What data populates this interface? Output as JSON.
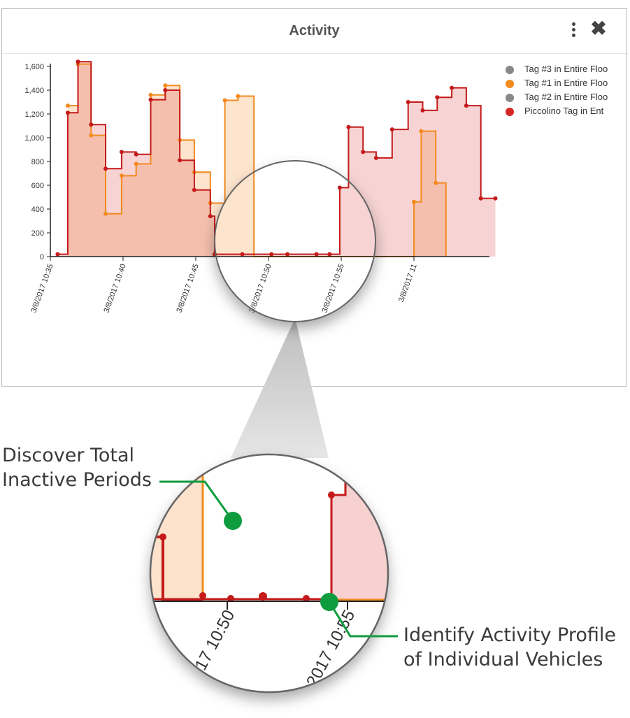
{
  "window": {
    "title": "Activity",
    "menu_icon": "kebab-menu-icon",
    "close_icon": "close-icon"
  },
  "legend": [
    {
      "label": "Tag #3 in Entire Floo",
      "color": "#888888"
    },
    {
      "label": "Tag #1 in Entire Floo",
      "color": "#f28a1e"
    },
    {
      "label": "Tag #2 in Entire Floo",
      "color": "#888888"
    },
    {
      "label": "Piccolino Tag in Ent",
      "color": "#d62728"
    }
  ],
  "chart_data": {
    "type": "area",
    "title": "Activity",
    "xlabel": "",
    "ylabel": "",
    "ylim": [
      0,
      1600
    ],
    "yticks": [
      0,
      200,
      400,
      600,
      800,
      1000,
      1200,
      1400,
      1600
    ],
    "ytick_labels": [
      "0",
      "200",
      "400",
      "600",
      "800",
      "1,000",
      "1,200",
      "1,400",
      "1,600"
    ],
    "xlim_minutes": [
      0,
      30
    ],
    "xticks_minutes": [
      0,
      5,
      10,
      15,
      20,
      25
    ],
    "xtick_labels": [
      "3/8/2017 10:35",
      "3/8/2017 10:40",
      "3/8/2017 10:45",
      "3/8/2017 10:50",
      "3/8/2017 10:55",
      "3/8/2017 11"
    ],
    "interpolation": "step-after",
    "grid": false,
    "legend_position": "top-right",
    "series": [
      {
        "name": "Tag #1 in Entire Floo",
        "color": "#f28a1e",
        "points": [
          [
            1.2,
            1270
          ],
          [
            1.9,
            1620
          ],
          [
            2.8,
            1020
          ],
          [
            3.8,
            360
          ],
          [
            4.9,
            680
          ],
          [
            5.9,
            780
          ],
          [
            6.9,
            1360
          ],
          [
            7.9,
            1440
          ],
          [
            8.9,
            980
          ],
          [
            9.9,
            710
          ],
          [
            11.0,
            450
          ],
          [
            12.0,
            1315
          ],
          [
            12.9,
            1350
          ],
          [
            14.0,
            0
          ],
          [
            20.0,
            0
          ],
          [
            25.0,
            460
          ],
          [
            25.5,
            1055
          ],
          [
            26.5,
            620
          ],
          [
            27.2,
            0
          ]
        ]
      },
      {
        "name": "Piccolino Tag in Ent",
        "color": "#d62728",
        "points": [
          [
            0.5,
            20
          ],
          [
            1.2,
            1210
          ],
          [
            1.9,
            1640
          ],
          [
            2.8,
            1110
          ],
          [
            3.8,
            740
          ],
          [
            4.9,
            880
          ],
          [
            5.9,
            860
          ],
          [
            6.9,
            1320
          ],
          [
            7.9,
            1400
          ],
          [
            8.9,
            810
          ],
          [
            9.9,
            560
          ],
          [
            11.0,
            340
          ],
          [
            11.3,
            20
          ],
          [
            13.2,
            20
          ],
          [
            15.2,
            20
          ],
          [
            16.3,
            20
          ],
          [
            18.3,
            20
          ],
          [
            19.2,
            20
          ],
          [
            19.9,
            580
          ],
          [
            20.5,
            1090
          ],
          [
            21.5,
            880
          ],
          [
            22.4,
            830
          ],
          [
            23.5,
            1070
          ],
          [
            24.6,
            1300
          ],
          [
            25.6,
            1230
          ],
          [
            26.6,
            1340
          ],
          [
            27.6,
            1420
          ],
          [
            28.6,
            1270
          ],
          [
            29.6,
            490
          ],
          [
            30.6,
            490
          ]
        ]
      }
    ]
  },
  "callouts": {
    "inactive": [
      "Discover Total",
      "Inactive Periods"
    ],
    "profile": [
      "Identify Activity Profile",
      "of Individual Vehicles"
    ]
  },
  "zoom": {
    "tick_labels": [
      "017 10:50",
      "2017 10:55"
    ]
  }
}
